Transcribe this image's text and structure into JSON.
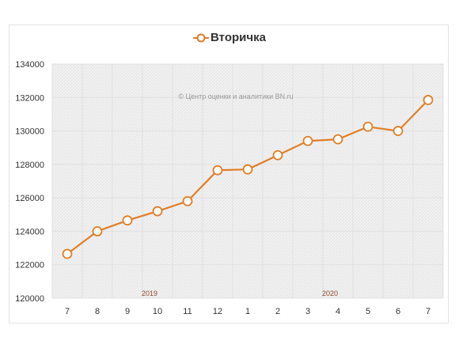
{
  "colors": {
    "series": "#E07E26",
    "grid": "#e0e0e0",
    "plot_bg": "#f1f1f1"
  },
  "legend": {
    "icon": "circle-line-marker-icon"
  },
  "watermark": "© Центр оценки и аналитики BN.ru",
  "chart_data": {
    "type": "line",
    "title": "",
    "xlabel": "",
    "ylabel": "",
    "categories": [
      "7",
      "8",
      "9",
      "10",
      "11",
      "12",
      "1",
      "2",
      "3",
      "4",
      "5",
      "6",
      "7"
    ],
    "year_labels": [
      {
        "text": "2019",
        "category_index": 3
      },
      {
        "text": "2020",
        "category_index": 9
      }
    ],
    "series": [
      {
        "name": "Вторичка",
        "values": [
          122650,
          124000,
          124650,
          125200,
          125800,
          127650,
          127700,
          128550,
          129400,
          129500,
          130250,
          130000,
          131850
        ]
      }
    ],
    "ylim": [
      120000,
      134000
    ],
    "yticks": [
      120000,
      122000,
      124000,
      126000,
      128000,
      130000,
      132000,
      134000
    ],
    "grid": true,
    "legend_position": "top-center"
  }
}
